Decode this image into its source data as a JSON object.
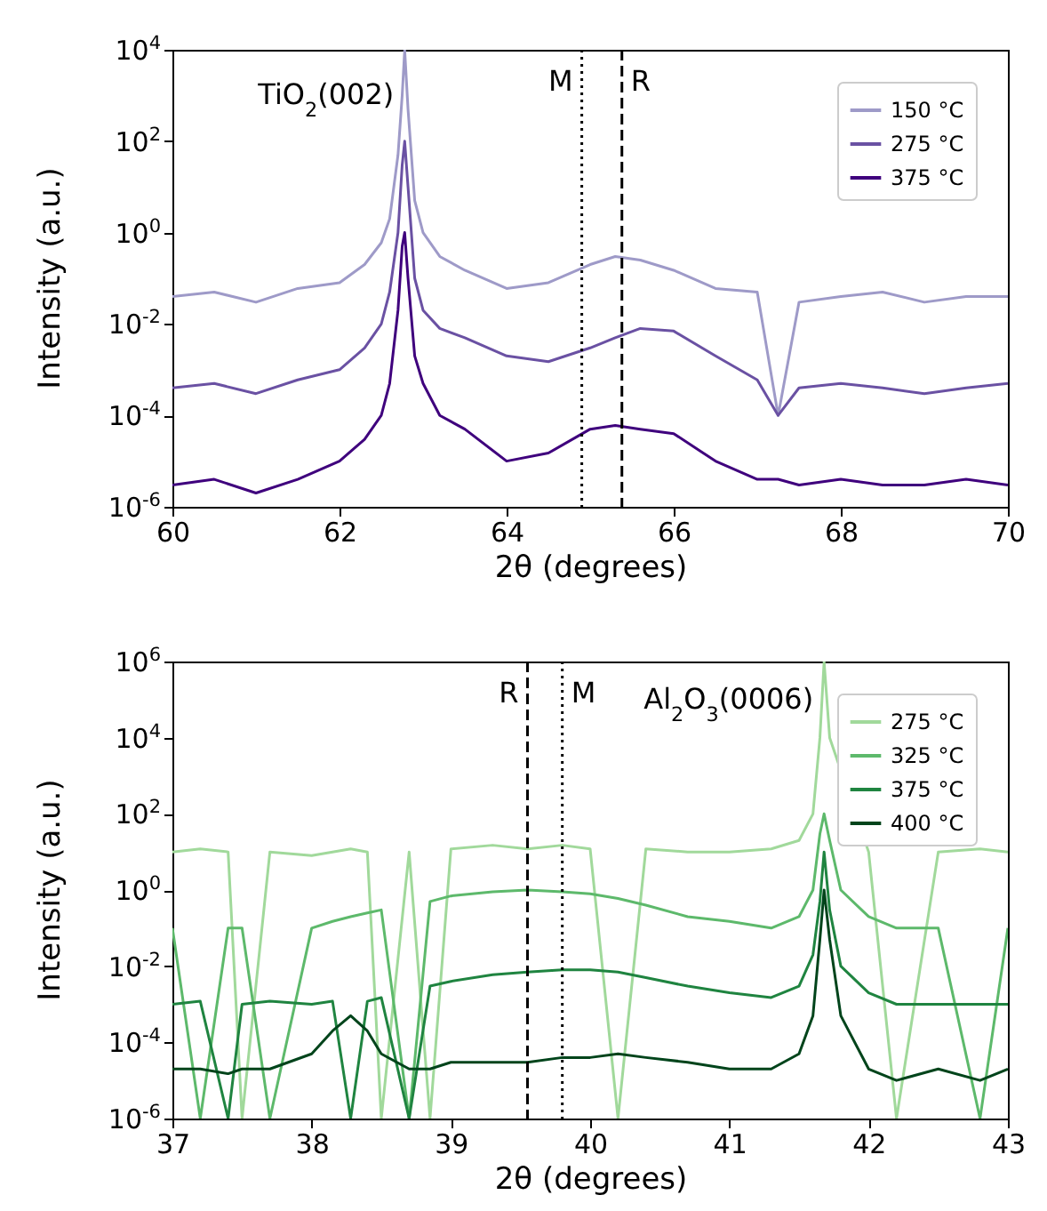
{
  "chart_data": [
    {
      "type": "line",
      "xlabel": "2θ (degrees)",
      "ylabel": "Intensity (a.u.)",
      "log": true,
      "legend": "top right",
      "x": [
        60,
        60.5,
        61,
        61.5,
        62,
        62.3,
        62.5,
        62.6,
        62.7,
        62.75,
        62.78,
        62.82,
        62.9,
        63,
        63.2,
        63.5,
        64,
        64.5,
        65,
        65.3,
        65.6,
        66,
        66.5,
        67,
        67.25,
        67.5,
        68,
        68.5,
        69,
        69.5,
        70
      ],
      "xlim": [
        60,
        70
      ],
      "xticks": [
        60,
        62,
        64,
        66,
        68,
        70
      ],
      "ylim": [
        1e-06,
        10000
      ],
      "yticks": [
        {
          "value": 1e-06,
          "label": "10$^{-6}$"
        },
        {
          "value": 0.0001,
          "label": "10$^{-4}$"
        },
        {
          "value": 0.01,
          "label": "10$^{-2}$"
        },
        {
          "value": 1,
          "label": "10$^{0}$"
        },
        {
          "value": 100,
          "label": "10$^{2}$"
        },
        {
          "value": 10000,
          "label": "10$^{4}$"
        }
      ],
      "series": [
        {
          "name": "150 °C",
          "color": "#9e9ac8",
          "values": [
            0.04,
            0.05,
            0.03,
            0.06,
            0.08,
            0.2,
            0.6,
            2,
            50,
            1000,
            10000,
            500,
            5,
            1,
            0.3,
            0.15,
            0.06,
            0.08,
            0.2,
            0.3,
            0.25,
            0.15,
            0.06,
            0.05,
            0.0001,
            0.03,
            0.04,
            0.05,
            0.03,
            0.04,
            0.04
          ]
        },
        {
          "name": "275 °C",
          "color": "#6a51a3",
          "values": [
            0.0004,
            0.0005,
            0.0003,
            0.0006,
            0.001,
            0.003,
            0.01,
            0.05,
            1,
            30,
            100,
            10,
            0.1,
            0.02,
            0.008,
            0.005,
            0.002,
            0.0015,
            0.003,
            0.005,
            0.008,
            0.007,
            0.002,
            0.0006,
            0.0001,
            0.0004,
            0.0005,
            0.0004,
            0.0003,
            0.0004,
            0.0005
          ]
        },
        {
          "name": "375 °C",
          "color": "#3f007d",
          "values": [
            3e-06,
            4e-06,
            2e-06,
            4e-06,
            1e-05,
            3e-05,
            0.0001,
            0.0005,
            0.02,
            0.5,
            1,
            0.1,
            0.002,
            0.0005,
            0.0001,
            5e-05,
            1e-05,
            1.5e-05,
            5e-05,
            6e-05,
            5e-05,
            4e-05,
            1e-05,
            4e-06,
            4e-06,
            3e-06,
            4e-06,
            3e-06,
            3e-06,
            4e-06,
            3e-06
          ]
        }
      ],
      "ref_lines": [
        {
          "axis": "x",
          "value": 64.9,
          "label": "M",
          "line_style": "dotted",
          "color": "#000000"
        },
        {
          "axis": "x",
          "value": 65.38,
          "label": "R",
          "line_style": "dashed",
          "color": "#000000"
        }
      ],
      "annotations": [
        {
          "text": "TiO$_{2}$(002)",
          "x": 62.78,
          "y": 1000
        }
      ]
    },
    {
      "type": "line",
      "xlabel": "2θ (degrees)",
      "ylabel": "Intensity (a.u.)",
      "log": true,
      "legend": "top right",
      "x": [
        37,
        37.2,
        37.4,
        37.5,
        37.7,
        38,
        38.15,
        38.28,
        38.4,
        38.5,
        38.7,
        38.85,
        39,
        39.3,
        39.55,
        39.8,
        40,
        40.2,
        40.4,
        40.7,
        41,
        41.3,
        41.5,
        41.6,
        41.65,
        41.68,
        41.72,
        41.8,
        42,
        42.2,
        42.5,
        42.8,
        43
      ],
      "xlim": [
        37,
        43
      ],
      "xticks": [
        37,
        38,
        39,
        40,
        41,
        42,
        43
      ],
      "ylim": [
        1e-06,
        1000000
      ],
      "yticks": [
        {
          "value": 1e-06,
          "label": "10$^{-6}$"
        },
        {
          "value": 0.0001,
          "label": "10$^{-4}$"
        },
        {
          "value": 0.01,
          "label": "10$^{-2}$"
        },
        {
          "value": 1,
          "label": "10$^{0}$"
        },
        {
          "value": 100,
          "label": "10$^{2}$"
        },
        {
          "value": 10000,
          "label": "10$^{4}$"
        },
        {
          "value": 1000000,
          "label": "10$^{6}$"
        }
      ],
      "series": [
        {
          "name": "275 °C",
          "color": "#a1d99b",
          "values": [
            10,
            12,
            10,
            1e-06,
            10,
            8,
            10,
            12,
            10,
            1e-06,
            10,
            1e-06,
            12,
            15,
            12,
            15,
            12,
            1e-06,
            12,
            10,
            10,
            12,
            20,
            100,
            10000,
            1000000,
            10000,
            null,
            10,
            1e-06,
            10,
            12,
            10
          ]
        },
        {
          "name": "325 °C",
          "color": "#5db96b",
          "values": [
            0.1,
            1e-06,
            0.1,
            0.1,
            1e-06,
            0.1,
            0.15,
            0.2,
            0.25,
            0.3,
            1e-06,
            0.5,
            0.7,
            0.9,
            1,
            0.9,
            0.8,
            0.6,
            0.4,
            0.2,
            0.15,
            0.1,
            0.2,
            1,
            30,
            100,
            20,
            1,
            0.2,
            0.1,
            0.1,
            1e-06,
            0.1
          ]
        },
        {
          "name": "375 °C",
          "color": "#1f8440",
          "values": [
            0.001,
            0.0012,
            1e-06,
            0.001,
            0.0012,
            0.001,
            0.0012,
            1e-06,
            0.0012,
            0.0015,
            1e-06,
            0.003,
            0.004,
            0.006,
            0.007,
            0.008,
            0.008,
            0.007,
            0.005,
            0.003,
            0.002,
            0.0015,
            0.003,
            0.02,
            0.5,
            10,
            0.3,
            0.01,
            0.002,
            0.001,
            0.001,
            0.001,
            0.001
          ]
        },
        {
          "name": "400 °C",
          "color": "#00441b",
          "values": [
            2e-05,
            2e-05,
            1.5e-05,
            2e-05,
            2e-05,
            5e-05,
            0.0002,
            0.0005,
            0.0002,
            5e-05,
            2e-05,
            2e-05,
            3e-05,
            3e-05,
            3e-05,
            4e-05,
            4e-05,
            5e-05,
            4e-05,
            3e-05,
            2e-05,
            2e-05,
            5e-05,
            0.0005,
            0.05,
            1,
            0.05,
            0.0005,
            2e-05,
            1e-05,
            2e-05,
            1e-05,
            2e-05
          ]
        }
      ],
      "ref_lines": [
        {
          "axis": "x",
          "value": 39.55,
          "label": "R",
          "line_style": "dashed",
          "color": "#000000"
        },
        {
          "axis": "x",
          "value": 39.8,
          "label": "M",
          "line_style": "dotted",
          "color": "#000000"
        }
      ],
      "annotations": [
        {
          "text": "Al$_{2}$O$_{3}$(0006)",
          "x": 41.68,
          "y": 100000
        }
      ]
    }
  ]
}
